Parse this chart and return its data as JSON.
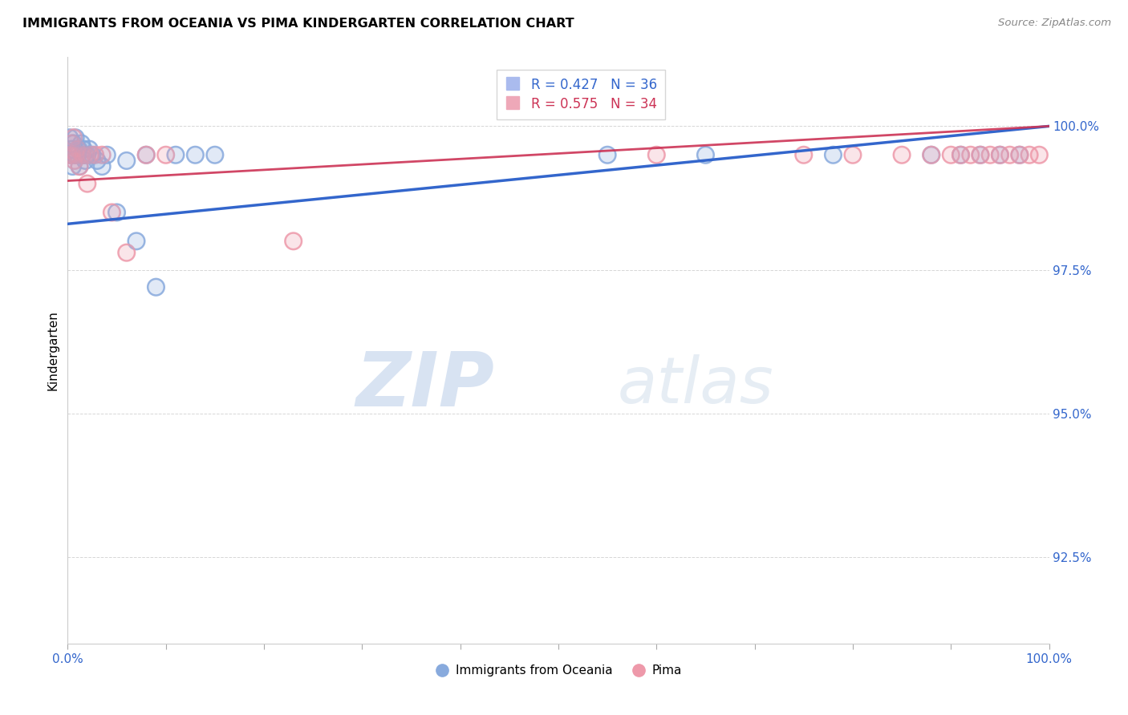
{
  "title": "IMMIGRANTS FROM OCEANIA VS PIMA KINDERGARTEN CORRELATION CHART",
  "source": "Source: ZipAtlas.com",
  "ylabel": "Kindergarten",
  "ytick_labels": [
    "92.5%",
    "95.0%",
    "97.5%",
    "100.0%"
  ],
  "ytick_values": [
    92.5,
    95.0,
    97.5,
    100.0
  ],
  "ymin": 91.0,
  "ymax": 101.2,
  "xmin": 0.0,
  "xmax": 100.0,
  "legend_blue_r": "R = 0.427",
  "legend_blue_n": "N = 36",
  "legend_pink_r": "R = 0.575",
  "legend_pink_n": "N = 34",
  "legend_label_blue": "Immigrants from Oceania",
  "legend_label_pink": "Pima",
  "blue_color": "#88aadd",
  "pink_color": "#ee99aa",
  "blue_line_color": "#3366cc",
  "pink_line_color": "#cc3355",
  "watermark_zip": "ZIP",
  "watermark_atlas": "atlas",
  "background_color": "#ffffff",
  "blue_scatter_x": [
    0.2,
    0.3,
    0.4,
    0.5,
    0.6,
    0.7,
    0.8,
    1.0,
    1.1,
    1.2,
    1.4,
    1.5,
    1.6,
    1.8,
    2.0,
    2.2,
    2.5,
    3.0,
    3.5,
    4.0,
    5.0,
    6.0,
    7.0,
    8.0,
    9.0,
    11.0,
    13.0,
    15.0,
    55.0,
    65.0,
    78.0,
    88.0,
    91.0,
    93.0,
    95.0,
    97.0
  ],
  "blue_scatter_y": [
    99.8,
    99.5,
    99.6,
    99.3,
    99.7,
    99.5,
    99.8,
    99.5,
    99.6,
    99.3,
    99.7,
    99.5,
    99.6,
    99.4,
    99.5,
    99.6,
    99.5,
    99.4,
    99.3,
    99.5,
    98.5,
    99.4,
    98.0,
    99.5,
    97.2,
    99.5,
    99.5,
    99.5,
    99.5,
    99.5,
    99.5,
    99.5,
    99.5,
    99.5,
    99.5,
    99.5
  ],
  "pink_scatter_x": [
    0.2,
    0.4,
    0.5,
    0.6,
    0.7,
    0.9,
    1.0,
    1.2,
    1.5,
    1.8,
    2.0,
    2.3,
    2.8,
    3.5,
    4.5,
    6.0,
    8.0,
    10.0,
    23.0,
    60.0,
    75.0,
    80.0,
    85.0,
    88.0,
    90.0,
    91.0,
    92.0,
    93.0,
    94.0,
    95.0,
    96.0,
    97.0,
    98.0,
    99.0
  ],
  "pink_scatter_y": [
    99.5,
    99.7,
    99.5,
    99.8,
    99.4,
    99.5,
    99.6,
    99.3,
    99.5,
    99.5,
    99.0,
    99.5,
    99.5,
    99.5,
    98.5,
    97.8,
    99.5,
    99.5,
    98.0,
    99.5,
    99.5,
    99.5,
    99.5,
    99.5,
    99.5,
    99.5,
    99.5,
    99.5,
    99.5,
    99.5,
    99.5,
    99.5,
    99.5,
    99.5
  ],
  "blue_line_x0": 0.0,
  "blue_line_y0": 98.3,
  "blue_line_x1": 100.0,
  "blue_line_y1": 100.0,
  "pink_line_x0": 0.0,
  "pink_line_y0": 99.05,
  "pink_line_x1": 100.0,
  "pink_line_y1": 100.0
}
